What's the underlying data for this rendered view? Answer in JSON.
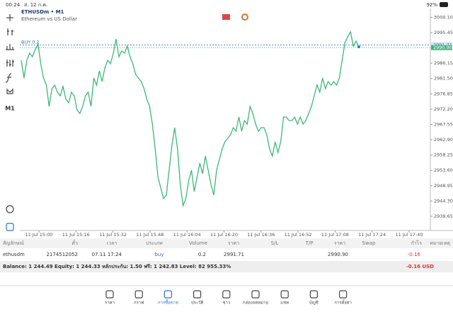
{
  "status_bar": {
    "time": "00:24",
    "date": "ส. 12 ก.ค.",
    "battery": "92%"
  },
  "sidebar": {
    "timeframe": "M1"
  },
  "chart": {
    "type": "line",
    "symbol": "ETHUSDm • M1",
    "description": "Ethereum vs US Dollar",
    "order_label": "BUY 0.2",
    "color": "#3cb878",
    "buy_price": 2991.71,
    "current_price": {
      "value": 2990.9,
      "label": "2990.90"
    },
    "ylim": [
      2935.34,
      3002.34
    ],
    "yticks": [
      2939.65,
      {
        "value": 2944.3,
        "label": "2944.30"
      },
      2948.95,
      {
        "value": 2953.6,
        "label": "2953.60"
      },
      2958.25,
      {
        "value": 2962.9,
        "label": "2962.90"
      },
      2967.55,
      {
        "value": 2972.2,
        "label": "2972.20"
      },
      2976.85,
      {
        "value": 2981.5,
        "label": "2981.50"
      },
      2986.15,
      2995.45,
      {
        "value": 3000.1,
        "label": "3000.10"
      }
    ],
    "xticks": [
      "11 Jul 15:00",
      "11 Jul 15:16",
      "11 Jul 15:32",
      "11 Jul 15:48",
      "11 Jul 16:04",
      "11 Jul 16:20",
      "11 Jul 16:36",
      "11 Jul 16:52",
      "11 Jul 17:08",
      "11 Jul 17:24",
      "11 Jul 17:40"
    ],
    "values": [
      2987.05,
      2981.66,
      2987.05,
      2989.2,
      2988.13,
      2990.28,
      2992.0,
      2985.97,
      2981.66,
      2979.51,
      2973.05,
      2978.43,
      2979.51,
      2977.35,
      2976.28,
      2979.08,
      2975.2,
      2974.12,
      2977.35,
      2976.28,
      2971.97,
      2970.89,
      2973.05,
      2976.28,
      2977.35,
      2973.05,
      2981.66,
      2979.51,
      2983.82,
      2980.59,
      2984.89,
      2987.05,
      2985.97,
      2989.2,
      2993.51,
      2988.13,
      2989.85,
      2989.2,
      2991.36,
      2988.13,
      2985.97,
      2982.74,
      2981.66,
      2980.59,
      2978.43,
      2975.2,
      2973.05,
      2967.66,
      2960.12,
      2951.5,
      2948.27,
      2945.04,
      2946.12,
      2953.66,
      2961.2,
      2966.58,
      2960.12,
      2949.35,
      2942.89,
      2945.04,
      2950.43,
      2953.66,
      2947.19,
      2951.5,
      2955.81,
      2952.58,
      2957.97,
      2953.66,
      2949.35,
      2946.12,
      2953.66,
      2956.89,
      2960.12,
      2962.27,
      2963.35,
      2964.43,
      2966.58,
      2965.51,
      2969.81,
      2965.51,
      2968.74,
      2967.66,
      2973.05,
      2970.89,
      2967.66,
      2965.51,
      2966.58,
      2966.58,
      2964.43,
      2960.12,
      2957.97,
      2962.27,
      2959.04,
      2962.27,
      2969.81,
      2969.81,
      2968.74,
      2968.74,
      2969.81,
      2967.66,
      2969.81,
      2967.66,
      2968.74,
      2970.89,
      2973.05,
      2976.28,
      2979.51,
      2977.35,
      2981.66,
      2978.43,
      2980.59,
      2979.51,
      2980.59,
      2979.51,
      2981.66,
      2987.05,
      2992.43,
      2994.16,
      2995.67,
      2991.36,
      2992.87,
      2991.14
    ]
  },
  "table": {
    "headers": [
      "สัญลักษณ์",
      "ตั๋ว",
      "เวลา",
      "ประเภท",
      "Volume",
      "ราคา",
      "S/L",
      "T/P",
      "ราคา",
      "Swap",
      "กำไร",
      "หมายเหตุ"
    ],
    "row": [
      "ethusdm",
      "2174512052",
      "07.11 17:24",
      "buy",
      "0.2",
      "2991.71",
      "",
      "",
      "2990.90",
      "",
      "-0.16",
      ""
    ]
  },
  "balance": {
    "text": "Balance: 1 244.49 Equity: 1 244.33 หลักประกัน: 1.50 ฟรี: 1 242.83 Level: 82 955.33%",
    "profit": "-0.16",
    "currency": "USD"
  },
  "nav": [
    "ราคา",
    "กราฟ",
    "การซื้อขาย",
    "ประวัติ",
    "ข่าว",
    "กล่องจดหมาย",
    "แชท",
    "บัญชี",
    "การตั้งค่า"
  ]
}
